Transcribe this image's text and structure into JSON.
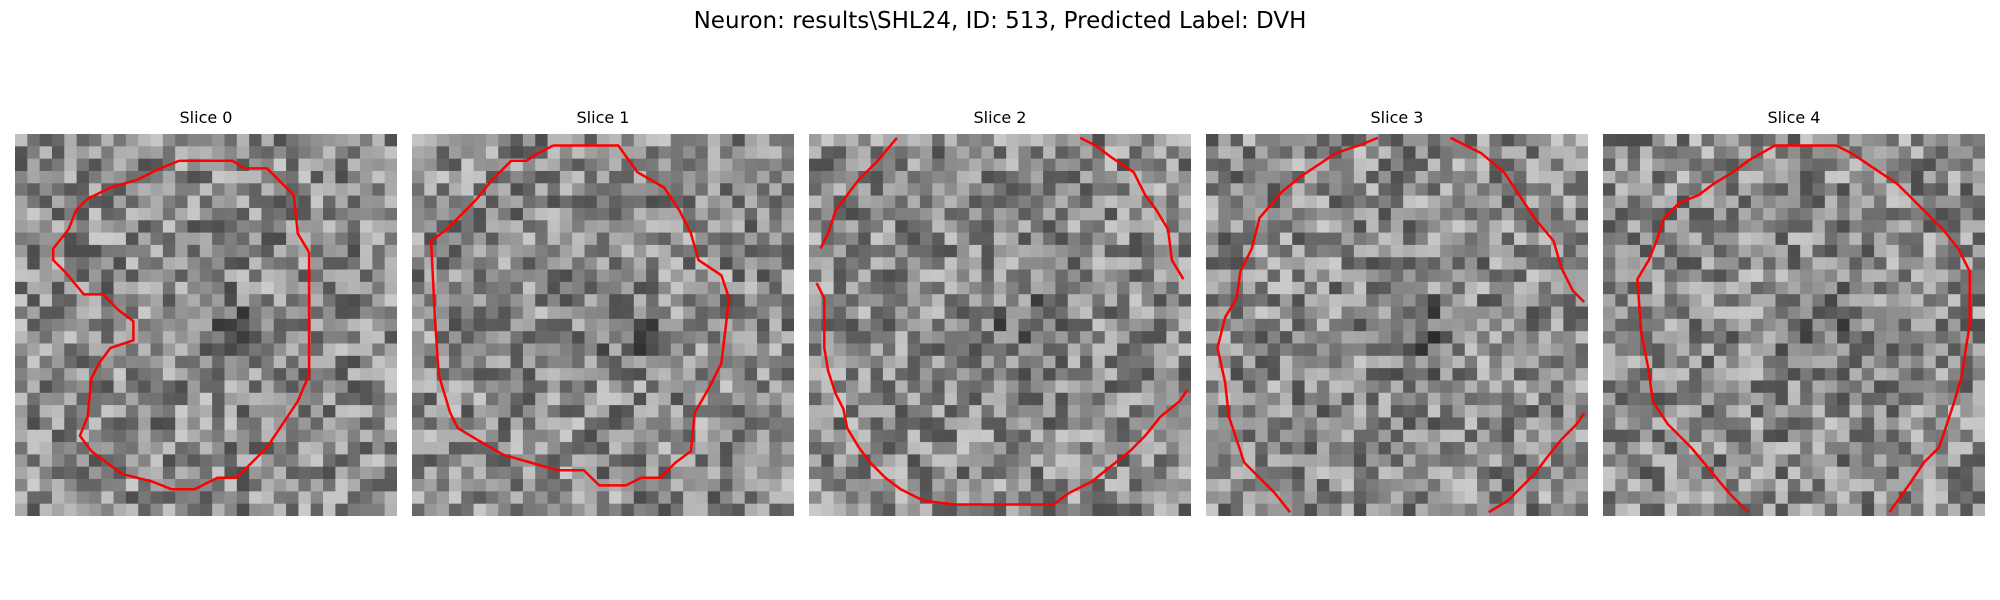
{
  "figure": {
    "title": "Neuron: results\\SHL24, ID: 513, Predicted Label: DVH"
  },
  "panels": [
    {
      "title": "Slice 0",
      "seed": 11,
      "contour_color": "#ff0000",
      "contour_paths": [
        [
          [
            0.43,
            0.07
          ],
          [
            0.57,
            0.07
          ],
          [
            0.6,
            0.09
          ],
          [
            0.66,
            0.09
          ],
          [
            0.7,
            0.13
          ],
          [
            0.73,
            0.16
          ],
          [
            0.74,
            0.26
          ],
          [
            0.77,
            0.31
          ],
          [
            0.77,
            0.63
          ],
          [
            0.74,
            0.7
          ],
          [
            0.7,
            0.76
          ],
          [
            0.66,
            0.82
          ],
          [
            0.58,
            0.9
          ],
          [
            0.53,
            0.9
          ],
          [
            0.47,
            0.93
          ],
          [
            0.41,
            0.93
          ],
          [
            0.36,
            0.91
          ],
          [
            0.28,
            0.89
          ],
          [
            0.2,
            0.83
          ],
          [
            0.17,
            0.79
          ],
          [
            0.19,
            0.74
          ],
          [
            0.2,
            0.64
          ],
          [
            0.22,
            0.6
          ],
          [
            0.25,
            0.56
          ],
          [
            0.31,
            0.54
          ],
          [
            0.31,
            0.49
          ],
          [
            0.27,
            0.46
          ],
          [
            0.23,
            0.42
          ],
          [
            0.18,
            0.42
          ],
          [
            0.13,
            0.36
          ],
          [
            0.1,
            0.33
          ],
          [
            0.1,
            0.3
          ],
          [
            0.14,
            0.25
          ],
          [
            0.16,
            0.2
          ],
          [
            0.19,
            0.17
          ],
          [
            0.25,
            0.14
          ],
          [
            0.32,
            0.12
          ],
          [
            0.38,
            0.09
          ],
          [
            0.43,
            0.07
          ]
        ]
      ]
    },
    {
      "title": "Slice 1",
      "seed": 23,
      "contour_color": "#ff0000",
      "contour_paths": [
        [
          [
            0.37,
            0.03
          ],
          [
            0.54,
            0.03
          ],
          [
            0.59,
            0.1
          ],
          [
            0.66,
            0.14
          ],
          [
            0.7,
            0.2
          ],
          [
            0.73,
            0.26
          ],
          [
            0.75,
            0.33
          ],
          [
            0.81,
            0.37
          ],
          [
            0.83,
            0.43
          ],
          [
            0.81,
            0.6
          ],
          [
            0.78,
            0.66
          ],
          [
            0.74,
            0.73
          ],
          [
            0.73,
            0.83
          ],
          [
            0.69,
            0.86
          ],
          [
            0.65,
            0.9
          ],
          [
            0.6,
            0.9
          ],
          [
            0.56,
            0.92
          ],
          [
            0.49,
            0.92
          ],
          [
            0.45,
            0.88
          ],
          [
            0.38,
            0.88
          ],
          [
            0.31,
            0.86
          ],
          [
            0.24,
            0.84
          ],
          [
            0.17,
            0.8
          ],
          [
            0.12,
            0.77
          ],
          [
            0.1,
            0.73
          ],
          [
            0.07,
            0.63
          ],
          [
            0.06,
            0.48
          ],
          [
            0.05,
            0.28
          ],
          [
            0.09,
            0.25
          ],
          [
            0.13,
            0.21
          ],
          [
            0.17,
            0.17
          ],
          [
            0.21,
            0.12
          ],
          [
            0.26,
            0.07
          ],
          [
            0.3,
            0.07
          ],
          [
            0.33,
            0.05
          ],
          [
            0.37,
            0.03
          ]
        ]
      ]
    },
    {
      "title": "Slice 2",
      "seed": 37,
      "contour_color": "#ff0000",
      "contour_paths": [
        [
          [
            0.23,
            0.01
          ],
          [
            0.18,
            0.07
          ],
          [
            0.13,
            0.12
          ],
          [
            0.07,
            0.2
          ],
          [
            0.05,
            0.26
          ],
          [
            0.03,
            0.3
          ]
        ],
        [
          [
            0.71,
            0.01
          ],
          [
            0.75,
            0.03
          ],
          [
            0.79,
            0.06
          ],
          [
            0.85,
            0.1
          ],
          [
            0.88,
            0.16
          ],
          [
            0.91,
            0.2
          ],
          [
            0.94,
            0.25
          ],
          [
            0.95,
            0.33
          ],
          [
            0.98,
            0.38
          ]
        ],
        [
          [
            0.02,
            0.39
          ],
          [
            0.04,
            0.43
          ],
          [
            0.04,
            0.56
          ],
          [
            0.05,
            0.62
          ],
          [
            0.07,
            0.68
          ],
          [
            0.09,
            0.72
          ],
          [
            0.1,
            0.77
          ],
          [
            0.13,
            0.82
          ],
          [
            0.16,
            0.86
          ],
          [
            0.2,
            0.9
          ],
          [
            0.24,
            0.93
          ],
          [
            0.3,
            0.96
          ],
          [
            0.38,
            0.97
          ],
          [
            0.64,
            0.97
          ],
          [
            0.68,
            0.94
          ],
          [
            0.74,
            0.91
          ],
          [
            0.79,
            0.87
          ],
          [
            0.84,
            0.83
          ],
          [
            0.88,
            0.79
          ],
          [
            0.92,
            0.74
          ],
          [
            0.97,
            0.7
          ],
          [
            0.99,
            0.67
          ]
        ]
      ]
    },
    {
      "title": "Slice 3",
      "seed": 53,
      "contour_color": "#ff0000",
      "contour_paths": [
        [
          [
            0.45,
            0.01
          ],
          [
            0.4,
            0.03
          ],
          [
            0.34,
            0.05
          ],
          [
            0.25,
            0.11
          ],
          [
            0.2,
            0.15
          ],
          [
            0.14,
            0.22
          ],
          [
            0.12,
            0.3
          ],
          [
            0.09,
            0.36
          ],
          [
            0.08,
            0.43
          ],
          [
            0.05,
            0.48
          ],
          [
            0.03,
            0.56
          ],
          [
            0.05,
            0.65
          ],
          [
            0.06,
            0.74
          ],
          [
            0.08,
            0.8
          ],
          [
            0.1,
            0.86
          ],
          [
            0.13,
            0.89
          ],
          [
            0.18,
            0.94
          ],
          [
            0.22,
            0.99
          ]
        ],
        [
          [
            0.64,
            0.01
          ],
          [
            0.68,
            0.03
          ],
          [
            0.72,
            0.05
          ],
          [
            0.78,
            0.1
          ],
          [
            0.82,
            0.16
          ],
          [
            0.86,
            0.22
          ],
          [
            0.91,
            0.28
          ],
          [
            0.93,
            0.35
          ],
          [
            0.96,
            0.41
          ],
          [
            0.99,
            0.44
          ]
        ],
        [
          [
            0.99,
            0.73
          ],
          [
            0.97,
            0.76
          ],
          [
            0.93,
            0.8
          ],
          [
            0.89,
            0.85
          ],
          [
            0.86,
            0.89
          ],
          [
            0.82,
            0.93
          ],
          [
            0.79,
            0.96
          ],
          [
            0.74,
            0.99
          ]
        ]
      ]
    },
    {
      "title": "Slice 4",
      "seed": 71,
      "contour_color": "#ff0000",
      "contour_paths": [
        [
          [
            0.38,
            0.07
          ],
          [
            0.45,
            0.03
          ],
          [
            0.61,
            0.03
          ],
          [
            0.65,
            0.05
          ],
          [
            0.71,
            0.09
          ],
          [
            0.77,
            0.13
          ],
          [
            0.81,
            0.17
          ],
          [
            0.85,
            0.21
          ],
          [
            0.89,
            0.25
          ],
          [
            0.93,
            0.3
          ],
          [
            0.96,
            0.36
          ],
          [
            0.96,
            0.5
          ],
          [
            0.95,
            0.56
          ],
          [
            0.94,
            0.63
          ],
          [
            0.92,
            0.7
          ],
          [
            0.9,
            0.76
          ],
          [
            0.88,
            0.82
          ],
          [
            0.84,
            0.86
          ],
          [
            0.8,
            0.92
          ],
          [
            0.75,
            0.99
          ]
        ],
        [
          [
            0.38,
            0.99
          ],
          [
            0.33,
            0.94
          ],
          [
            0.28,
            0.88
          ],
          [
            0.23,
            0.82
          ],
          [
            0.17,
            0.76
          ],
          [
            0.13,
            0.7
          ],
          [
            0.12,
            0.62
          ],
          [
            0.1,
            0.52
          ],
          [
            0.09,
            0.38
          ],
          [
            0.12,
            0.33
          ],
          [
            0.14,
            0.28
          ],
          [
            0.16,
            0.22
          ],
          [
            0.2,
            0.18
          ],
          [
            0.25,
            0.16
          ],
          [
            0.29,
            0.13
          ],
          [
            0.34,
            0.1
          ],
          [
            0.38,
            0.07
          ]
        ]
      ]
    }
  ]
}
